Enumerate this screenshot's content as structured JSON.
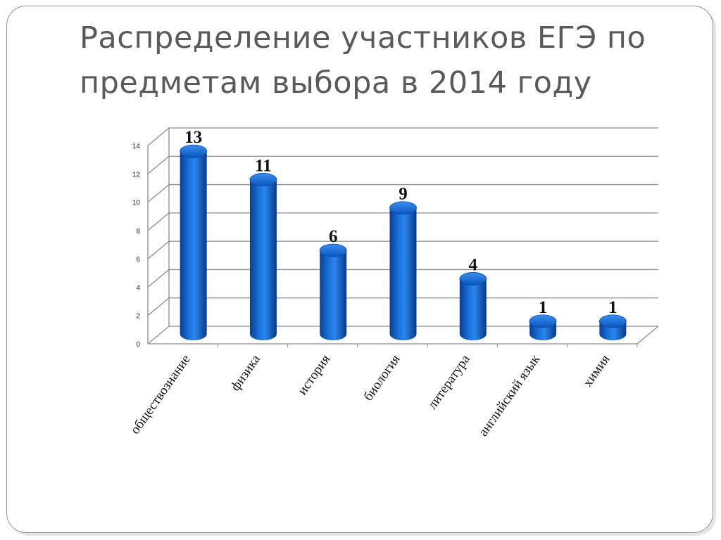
{
  "slide": {
    "title_line1": "Распределение участников ЕГЭ по",
    "title_line2": "предметам выбора в 2014 году"
  },
  "chart_data": {
    "type": "bar",
    "title": "",
    "xlabel": "",
    "ylabel": "",
    "categories": [
      "обществознание",
      "физика",
      "история",
      "биология",
      "литература",
      "английский язык",
      "химия"
    ],
    "values": [
      13,
      11,
      6,
      9,
      4,
      1,
      1
    ],
    "ylim": [
      0,
      14
    ],
    "yticks": [
      0,
      2,
      4,
      6,
      8,
      10,
      12,
      14
    ],
    "grid": true,
    "style": "3d-cylinder",
    "bar_color": "#0a5bc4",
    "legend": "none"
  }
}
